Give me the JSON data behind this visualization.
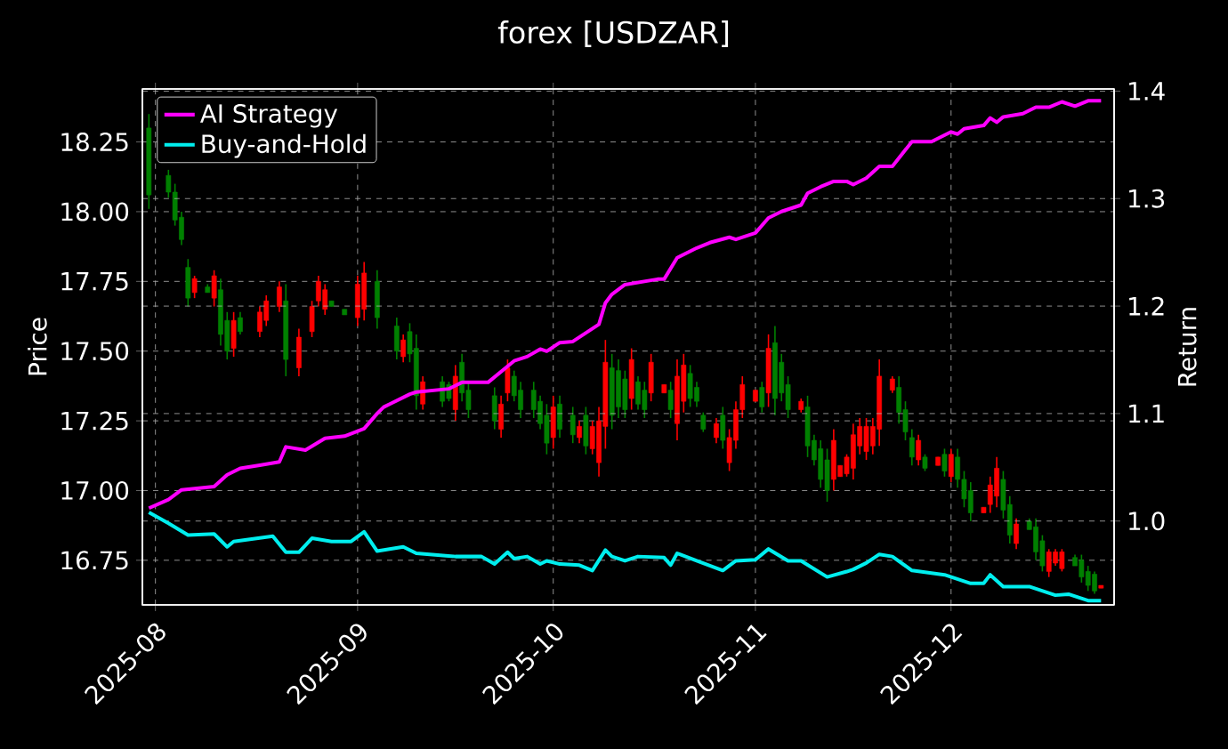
{
  "chart_data": {
    "type": "candlestick",
    "title": "forex [USDZAR]",
    "ylabel": "Price",
    "y2label": "Return",
    "x": [
      "2025-07-31",
      "2025-08-03",
      "2025-08-04",
      "2025-08-05",
      "2025-08-06",
      "2025-08-07",
      "2025-08-09",
      "2025-08-10",
      "2025-08-11",
      "2025-08-12",
      "2025-08-13",
      "2025-08-14",
      "2025-08-17",
      "2025-08-18",
      "2025-08-20",
      "2025-08-21",
      "2025-08-23",
      "2025-08-25",
      "2025-08-26",
      "2025-08-27",
      "2025-08-28",
      "2025-08-30",
      "2025-09-01",
      "2025-09-02",
      "2025-09-04",
      "2025-09-07",
      "2025-09-08",
      "2025-09-09",
      "2025-09-10",
      "2025-09-11",
      "2025-09-14",
      "2025-09-15",
      "2025-09-16",
      "2025-09-17",
      "2025-09-18",
      "2025-09-22",
      "2025-09-23",
      "2025-09-24",
      "2025-09-25",
      "2025-09-26",
      "2025-09-28",
      "2025-09-29",
      "2025-09-30",
      "2025-10-01",
      "2025-10-02",
      "2025-10-04",
      "2025-10-05",
      "2025-10-06",
      "2025-10-07",
      "2025-10-08",
      "2025-10-09",
      "2025-10-10",
      "2025-10-11",
      "2025-10-12",
      "2025-10-13",
      "2025-10-14",
      "2025-10-15",
      "2025-10-16",
      "2025-10-18",
      "2025-10-19",
      "2025-10-20",
      "2025-10-21",
      "2025-10-22",
      "2025-10-23",
      "2025-10-24",
      "2025-10-26",
      "2025-10-27",
      "2025-10-28",
      "2025-10-29",
      "2025-10-30",
      "2025-11-01",
      "2025-11-02",
      "2025-11-03",
      "2025-11-04",
      "2025-11-05",
      "2025-11-06",
      "2025-11-08",
      "2025-11-09",
      "2025-11-10",
      "2025-11-11",
      "2025-11-12",
      "2025-11-13",
      "2025-11-14",
      "2025-11-15",
      "2025-11-16",
      "2025-11-17",
      "2025-11-18",
      "2025-11-19",
      "2025-11-20",
      "2025-11-22",
      "2025-11-23",
      "2025-11-24",
      "2025-11-25",
      "2025-11-26",
      "2025-11-27",
      "2025-11-29",
      "2025-11-30",
      "2025-12-01",
      "2025-12-02",
      "2025-12-03",
      "2025-12-04",
      "2025-12-06",
      "2025-12-07",
      "2025-12-08",
      "2025-12-09",
      "2025-12-10",
      "2025-12-11",
      "2025-12-13",
      "2025-12-14",
      "2025-12-15",
      "2025-12-16",
      "2025-12-17",
      "2025-12-18",
      "2025-12-20",
      "2025-12-21",
      "2025-12-22",
      "2025-12-23",
      "2025-12-24"
    ],
    "ohlc": [
      [
        18.06,
        18.35,
        18.01,
        18.3
      ],
      [
        18.07,
        18.15,
        18.05,
        18.13
      ],
      [
        17.97,
        18.1,
        17.95,
        18.07
      ],
      [
        17.9,
        18.0,
        17.88,
        17.98
      ],
      [
        17.69,
        17.83,
        17.66,
        17.8
      ],
      [
        17.76,
        17.77,
        17.69,
        17.71
      ],
      [
        17.71,
        17.74,
        17.71,
        17.73
      ],
      [
        17.77,
        17.79,
        17.66,
        17.69
      ],
      [
        17.56,
        17.76,
        17.52,
        17.72
      ],
      [
        17.5,
        17.64,
        17.47,
        17.61
      ],
      [
        17.61,
        17.64,
        17.48,
        17.51
      ],
      [
        17.57,
        17.64,
        17.56,
        17.62
      ],
      [
        17.64,
        17.66,
        17.55,
        17.57
      ],
      [
        17.68,
        17.7,
        17.59,
        17.61
      ],
      [
        17.73,
        17.75,
        17.64,
        17.66
      ],
      [
        17.47,
        17.74,
        17.41,
        17.68
      ],
      [
        17.55,
        17.58,
        17.41,
        17.44
      ],
      [
        17.66,
        17.68,
        17.55,
        17.57
      ],
      [
        17.75,
        17.77,
        17.66,
        17.68
      ],
      [
        17.72,
        17.74,
        17.63,
        17.65
      ],
      [
        17.66,
        17.68,
        17.66,
        17.68
      ],
      [
        17.63,
        17.65,
        17.63,
        17.65
      ],
      [
        17.74,
        17.77,
        17.59,
        17.62
      ],
      [
        17.78,
        17.82,
        17.61,
        17.65
      ],
      [
        17.62,
        17.79,
        17.58,
        17.75
      ],
      [
        17.5,
        17.62,
        17.47,
        17.59
      ],
      [
        17.54,
        17.56,
        17.46,
        17.48
      ],
      [
        17.49,
        17.6,
        17.46,
        17.57
      ],
      [
        17.34,
        17.56,
        17.29,
        17.51
      ],
      [
        17.39,
        17.41,
        17.29,
        17.31
      ],
      [
        17.32,
        17.41,
        17.3,
        17.39
      ],
      [
        17.33,
        17.39,
        17.32,
        17.38
      ],
      [
        17.41,
        17.45,
        17.25,
        17.29
      ],
      [
        17.35,
        17.49,
        17.32,
        17.46
      ],
      [
        17.29,
        17.39,
        17.26,
        17.36
      ],
      [
        17.25,
        17.37,
        17.22,
        17.34
      ],
      [
        17.31,
        17.34,
        17.19,
        17.22
      ],
      [
        17.44,
        17.47,
        17.32,
        17.35
      ],
      [
        17.34,
        17.43,
        17.32,
        17.41
      ],
      [
        17.29,
        17.39,
        17.26,
        17.36
      ],
      [
        17.29,
        17.39,
        17.26,
        17.36
      ],
      [
        17.24,
        17.34,
        17.22,
        17.32
      ],
      [
        17.17,
        17.31,
        17.13,
        17.27
      ],
      [
        17.3,
        17.34,
        17.15,
        17.19
      ],
      [
        17.22,
        17.34,
        17.19,
        17.31
      ],
      [
        17.2,
        17.3,
        17.17,
        17.27
      ],
      [
        17.23,
        17.25,
        17.17,
        17.19
      ],
      [
        17.16,
        17.3,
        17.13,
        17.27
      ],
      [
        17.23,
        17.25,
        17.13,
        17.15
      ],
      [
        17.25,
        17.3,
        17.05,
        17.1
      ],
      [
        17.46,
        17.54,
        17.15,
        17.23
      ],
      [
        17.27,
        17.49,
        17.22,
        17.44
      ],
      [
        17.3,
        17.47,
        17.26,
        17.43
      ],
      [
        17.29,
        17.43,
        17.26,
        17.4
      ],
      [
        17.47,
        17.51,
        17.29,
        17.33
      ],
      [
        17.31,
        17.41,
        17.29,
        17.39
      ],
      [
        17.29,
        17.39,
        17.26,
        17.36
      ],
      [
        17.46,
        17.49,
        17.32,
        17.35
      ],
      [
        17.38,
        17.38,
        17.35,
        17.35
      ],
      [
        17.29,
        17.39,
        17.26,
        17.36
      ],
      [
        17.41,
        17.47,
        17.18,
        17.24
      ],
      [
        17.45,
        17.49,
        17.28,
        17.32
      ],
      [
        17.33,
        17.45,
        17.3,
        17.42
      ],
      [
        17.32,
        17.39,
        17.3,
        17.37
      ],
      [
        17.22,
        17.28,
        17.21,
        17.27
      ],
      [
        17.24,
        17.26,
        17.17,
        17.19
      ],
      [
        17.18,
        17.3,
        17.15,
        17.27
      ],
      [
        17.19,
        17.22,
        17.07,
        17.1
      ],
      [
        17.29,
        17.32,
        17.15,
        17.18
      ],
      [
        17.38,
        17.41,
        17.26,
        17.29
      ],
      [
        17.36,
        17.36,
        17.32,
        17.32
      ],
      [
        17.3,
        17.39,
        17.28,
        17.37
      ],
      [
        17.51,
        17.56,
        17.3,
        17.35
      ],
      [
        17.33,
        17.59,
        17.27,
        17.53
      ],
      [
        17.35,
        17.49,
        17.32,
        17.46
      ],
      [
        17.29,
        17.41,
        17.26,
        17.38
      ],
      [
        17.32,
        17.33,
        17.28,
        17.29
      ],
      [
        17.16,
        17.34,
        17.12,
        17.3
      ],
      [
        17.11,
        17.2,
        17.09,
        17.18
      ],
      [
        17.04,
        17.18,
        17.01,
        17.15
      ],
      [
        17.0,
        17.15,
        16.96,
        17.11
      ],
      [
        17.18,
        17.22,
        17.0,
        17.04
      ],
      [
        17.09,
        17.09,
        17.05,
        17.05
      ],
      [
        17.12,
        17.13,
        17.05,
        17.06
      ],
      [
        17.2,
        17.24,
        17.04,
        17.08
      ],
      [
        17.23,
        17.26,
        17.13,
        17.16
      ],
      [
        17.23,
        17.26,
        17.11,
        17.14
      ],
      [
        17.23,
        17.26,
        17.13,
        17.16
      ],
      [
        17.41,
        17.47,
        17.16,
        17.22
      ],
      [
        17.4,
        17.41,
        17.35,
        17.36
      ],
      [
        17.28,
        17.41,
        17.24,
        17.37
      ],
      [
        17.21,
        17.32,
        17.18,
        17.29
      ],
      [
        17.12,
        17.22,
        17.09,
        17.19
      ],
      [
        17.18,
        17.2,
        17.09,
        17.11
      ],
      [
        17.08,
        17.13,
        17.07,
        17.12
      ],
      [
        17.12,
        17.12,
        17.09,
        17.09
      ],
      [
        17.07,
        17.15,
        17.05,
        17.13
      ],
      [
        17.13,
        17.15,
        17.03,
        17.05
      ],
      [
        17.04,
        17.15,
        17.01,
        17.12
      ],
      [
        16.97,
        17.07,
        16.94,
        17.04
      ],
      [
        16.92,
        17.03,
        16.89,
        17.0
      ],
      [
        16.94,
        16.94,
        16.92,
        16.92
      ],
      [
        17.02,
        17.05,
        16.92,
        16.95
      ],
      [
        17.08,
        17.12,
        16.94,
        16.98
      ],
      [
        16.93,
        17.07,
        16.9,
        17.04
      ],
      [
        16.84,
        16.98,
        16.81,
        16.95
      ],
      [
        16.88,
        16.9,
        16.79,
        16.81
      ],
      [
        16.86,
        16.9,
        16.86,
        16.89
      ],
      [
        16.78,
        16.9,
        16.75,
        16.87
      ],
      [
        16.73,
        16.84,
        16.71,
        16.82
      ],
      [
        16.78,
        16.79,
        16.69,
        16.71
      ],
      [
        16.78,
        16.79,
        16.73,
        16.74
      ],
      [
        16.78,
        16.79,
        16.71,
        16.72
      ],
      [
        16.73,
        16.77,
        16.73,
        16.76
      ],
      [
        16.69,
        16.77,
        16.67,
        16.75
      ],
      [
        16.66,
        16.73,
        16.64,
        16.71
      ],
      [
        16.64,
        16.71,
        16.63,
        16.7
      ],
      [
        16.66,
        16.66,
        16.65,
        16.65
      ]
    ],
    "colors": [
      "#008000",
      "#008000",
      "#008000",
      "#008000",
      "#008000",
      "#ff0000",
      "#008000",
      "#ff0000",
      "#008000",
      "#008000",
      "#ff0000",
      "#008000",
      "#ff0000",
      "#ff0000",
      "#ff0000",
      "#008000",
      "#ff0000",
      "#ff0000",
      "#ff0000",
      "#ff0000",
      "#008000",
      "#008000",
      "#ff0000",
      "#ff0000",
      "#008000",
      "#008000",
      "#ff0000",
      "#008000",
      "#008000",
      "#ff0000",
      "#008000",
      "#008000",
      "#ff0000",
      "#008000",
      "#008000",
      "#008000",
      "#ff0000",
      "#ff0000",
      "#008000",
      "#008000",
      "#008000",
      "#008000",
      "#008000",
      "#ff0000",
      "#008000",
      "#008000",
      "#ff0000",
      "#008000",
      "#ff0000",
      "#ff0000",
      "#ff0000",
      "#008000",
      "#008000",
      "#008000",
      "#ff0000",
      "#008000",
      "#008000",
      "#ff0000",
      "#ff0000",
      "#008000",
      "#ff0000",
      "#ff0000",
      "#008000",
      "#008000",
      "#008000",
      "#ff0000",
      "#008000",
      "#ff0000",
      "#ff0000",
      "#ff0000",
      "#ff0000",
      "#008000",
      "#ff0000",
      "#008000",
      "#008000",
      "#008000",
      "#ff0000",
      "#008000",
      "#008000",
      "#008000",
      "#008000",
      "#ff0000",
      "#ff0000",
      "#ff0000",
      "#ff0000",
      "#ff0000",
      "#ff0000",
      "#ff0000",
      "#ff0000",
      "#ff0000",
      "#008000",
      "#008000",
      "#008000",
      "#ff0000",
      "#008000",
      "#ff0000",
      "#008000",
      "#ff0000",
      "#008000",
      "#008000",
      "#008000",
      "#ff0000",
      "#ff0000",
      "#ff0000",
      "#008000",
      "#008000",
      "#ff0000",
      "#008000",
      "#008000",
      "#008000",
      "#ff0000",
      "#ff0000",
      "#ff0000",
      "#008000",
      "#008000",
      "#008000",
      "#008000",
      "#ff0000"
    ],
    "series": [
      {
        "name": "AI Strategy",
        "type": "line",
        "axis": "y2",
        "color": "#ff00ff",
        "x": [
          "2025-07-31",
          "2025-08-03",
          "2025-08-05",
          "2025-08-10",
          "2025-08-12",
          "2025-08-14",
          "2025-08-17",
          "2025-08-20",
          "2025-08-21",
          "2025-08-24",
          "2025-08-27",
          "2025-08-30",
          "2025-09-02",
          "2025-09-04",
          "2025-09-05",
          "2025-09-06",
          "2025-09-09",
          "2025-09-10",
          "2025-09-15",
          "2025-09-17",
          "2025-09-21",
          "2025-09-25",
          "2025-09-27",
          "2025-09-29",
          "2025-09-30",
          "2025-10-02",
          "2025-10-04",
          "2025-10-08",
          "2025-10-09",
          "2025-10-10",
          "2025-10-12",
          "2025-10-17",
          "2025-10-18",
          "2025-10-20",
          "2025-10-23",
          "2025-10-25",
          "2025-10-28",
          "2025-10-29",
          "2025-11-01",
          "2025-11-03",
          "2025-11-05",
          "2025-11-08",
          "2025-11-09",
          "2025-11-11",
          "2025-11-13",
          "2025-11-15",
          "2025-11-16",
          "2025-11-18",
          "2025-11-20",
          "2025-11-22",
          "2025-11-25",
          "2025-11-28",
          "2025-12-01",
          "2025-12-02",
          "2025-12-03",
          "2025-12-06",
          "2025-12-07",
          "2025-12-08",
          "2025-12-09",
          "2025-12-12",
          "2025-12-14",
          "2025-12-16",
          "2025-12-18",
          "2025-12-20",
          "2025-12-22",
          "2025-12-24"
        ],
        "values": [
          1.012,
          1.02,
          1.029,
          1.032,
          1.043,
          1.049,
          1.052,
          1.055,
          1.069,
          1.066,
          1.077,
          1.079,
          1.086,
          1.1,
          1.106,
          1.109,
          1.118,
          1.12,
          1.123,
          1.129,
          1.129,
          1.149,
          1.153,
          1.16,
          1.158,
          1.166,
          1.167,
          1.183,
          1.203,
          1.211,
          1.22,
          1.225,
          1.225,
          1.245,
          1.254,
          1.259,
          1.264,
          1.262,
          1.268,
          1.282,
          1.288,
          1.294,
          1.305,
          1.311,
          1.316,
          1.316,
          1.313,
          1.319,
          1.33,
          1.33,
          1.353,
          1.353,
          1.362,
          1.36,
          1.365,
          1.368,
          1.375,
          1.371,
          1.376,
          1.379,
          1.385,
          1.385,
          1.39,
          1.386,
          1.391,
          1.391
        ]
      },
      {
        "name": "Buy-and-Hold",
        "type": "line",
        "axis": "y2",
        "color": "#00eeee",
        "x": [
          "2025-07-31",
          "2025-08-03",
          "2025-08-06",
          "2025-08-10",
          "2025-08-12",
          "2025-08-13",
          "2025-08-19",
          "2025-08-21",
          "2025-08-23",
          "2025-08-25",
          "2025-08-28",
          "2025-08-31",
          "2025-09-02",
          "2025-09-04",
          "2025-09-08",
          "2025-09-10",
          "2025-09-16",
          "2025-09-20",
          "2025-09-22",
          "2025-09-24",
          "2025-09-25",
          "2025-09-27",
          "2025-09-29",
          "2025-09-30",
          "2025-10-02",
          "2025-10-05",
          "2025-10-07",
          "2025-10-09",
          "2025-10-10",
          "2025-10-12",
          "2025-10-14",
          "2025-10-18",
          "2025-10-19",
          "2025-10-20",
          "2025-10-23",
          "2025-10-27",
          "2025-10-29",
          "2025-11-01",
          "2025-11-03",
          "2025-11-06",
          "2025-11-08",
          "2025-11-12",
          "2025-11-15",
          "2025-11-16",
          "2025-11-18",
          "2025-11-20",
          "2025-11-22",
          "2025-11-25",
          "2025-11-30",
          "2025-12-04",
          "2025-12-06",
          "2025-12-07",
          "2025-12-09",
          "2025-12-13",
          "2025-12-17",
          "2025-12-19",
          "2025-12-22",
          "2025-12-24"
        ],
        "values": [
          1.008,
          0.998,
          0.987,
          0.988,
          0.976,
          0.981,
          0.986,
          0.971,
          0.971,
          0.984,
          0.981,
          0.981,
          0.99,
          0.972,
          0.976,
          0.97,
          0.967,
          0.967,
          0.96,
          0.971,
          0.965,
          0.967,
          0.96,
          0.963,
          0.96,
          0.959,
          0.954,
          0.973,
          0.967,
          0.963,
          0.967,
          0.966,
          0.959,
          0.97,
          0.963,
          0.954,
          0.963,
          0.964,
          0.974,
          0.963,
          0.963,
          0.948,
          0.953,
          0.955,
          0.961,
          0.969,
          0.967,
          0.954,
          0.95,
          0.942,
          0.942,
          0.95,
          0.939,
          0.939,
          0.931,
          0.932,
          0.926,
          0.926
        ]
      }
    ],
    "xlim": [
      "2025-07-30",
      "2025-12-26"
    ],
    "xticks": [
      {
        "value": "2025-08-01",
        "label": "2025-08"
      },
      {
        "value": "2025-09-01",
        "label": "2025-09"
      },
      {
        "value": "2025-10-01",
        "label": "2025-10"
      },
      {
        "value": "2025-11-01",
        "label": "2025-11"
      },
      {
        "value": "2025-12-01",
        "label": "2025-12"
      }
    ],
    "ylim": [
      16.59,
      18.44
    ],
    "yticks": [
      16.75,
      {
        "value": 17,
        "label": "17.00"
      },
      17.25,
      {
        "value": 17.5,
        "label": "17.50"
      },
      17.75,
      {
        "value": 18,
        "label": "18.00"
      },
      18.25
    ],
    "y2lim": [
      0.922,
      1.402
    ],
    "y2ticks": [
      {
        "value": 1,
        "label": "1.0"
      },
      1.1,
      1.2,
      1.3,
      1.4
    ],
    "grid": true,
    "legend": "top left",
    "marker": "none",
    "line_style": "solid"
  }
}
